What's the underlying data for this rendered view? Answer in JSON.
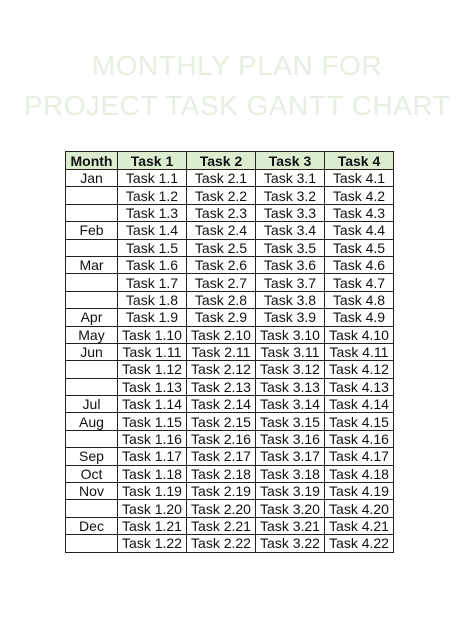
{
  "title": {
    "line1": "MONTHLY PLAN FOR",
    "line2": "PROJECT TASK GANTT CHART"
  },
  "table": {
    "headers": [
      "Month",
      "Task 1",
      "Task 2",
      "Task 3",
      "Task 4"
    ],
    "rows": [
      {
        "month": "Jan",
        "t1": "Task 1.1",
        "t2": "Task 2.1",
        "t3": "Task 3.1",
        "t4": "Task 4.1"
      },
      {
        "month": "",
        "t1": "Task 1.2",
        "t2": "Task 2.2",
        "t3": "Task 3.2",
        "t4": "Task 4.2"
      },
      {
        "month": "",
        "t1": "Task 1.3",
        "t2": "Task 2.3",
        "t3": "Task 3.3",
        "t4": "Task 4.3"
      },
      {
        "month": "Feb",
        "t1": "Task 1.4",
        "t2": "Task 2.4",
        "t3": "Task 3.4",
        "t4": "Task 4.4"
      },
      {
        "month": "",
        "t1": "Task 1.5",
        "t2": "Task 2.5",
        "t3": "Task 3.5",
        "t4": "Task 4.5"
      },
      {
        "month": "Mar",
        "t1": "Task 1.6",
        "t2": "Task 2.6",
        "t3": "Task 3.6",
        "t4": "Task 4.6"
      },
      {
        "month": "",
        "t1": "Task 1.7",
        "t2": "Task 2.7",
        "t3": "Task 3.7",
        "t4": "Task 4.7"
      },
      {
        "month": "",
        "t1": "Task 1.8",
        "t2": "Task 2.8",
        "t3": "Task 3.8",
        "t4": "Task 4.8"
      },
      {
        "month": "Apr",
        "t1": "Task 1.9",
        "t2": "Task 2.9",
        "t3": "Task 3.9",
        "t4": "Task 4.9"
      },
      {
        "month": "May",
        "t1": "Task 1.10",
        "t2": "Task 2.10",
        "t3": "Task 3.10",
        "t4": "Task 4.10"
      },
      {
        "month": "Jun",
        "t1": "Task 1.11",
        "t2": "Task 2.11",
        "t3": "Task 3.11",
        "t4": "Task 4.11"
      },
      {
        "month": "",
        "t1": "Task 1.12",
        "t2": "Task 2.12",
        "t3": "Task 3.12",
        "t4": "Task 4.12"
      },
      {
        "month": "",
        "t1": "Task 1.13",
        "t2": "Task 2.13",
        "t3": "Task 3.13",
        "t4": "Task 4.13"
      },
      {
        "month": "Jul",
        "t1": "Task 1.14",
        "t2": "Task 2.14",
        "t3": "Task 3.14",
        "t4": "Task 4.14"
      },
      {
        "month": "Aug",
        "t1": "Task 1.15",
        "t2": "Task 2.15",
        "t3": "Task 3.15",
        "t4": "Task 4.15"
      },
      {
        "month": "",
        "t1": "Task 1.16",
        "t2": "Task 2.16",
        "t3": "Task 3.16",
        "t4": "Task 4.16"
      },
      {
        "month": "Sep",
        "t1": "Task 1.17",
        "t2": "Task 2.17",
        "t3": "Task 3.17",
        "t4": "Task 4.17"
      },
      {
        "month": "Oct",
        "t1": "Task 1.18",
        "t2": "Task 2.18",
        "t3": "Task 3.18",
        "t4": "Task 4.18"
      },
      {
        "month": "Nov",
        "t1": "Task 1.19",
        "t2": "Task 2.19",
        "t3": "Task 3.19",
        "t4": "Task 4.19"
      },
      {
        "month": "",
        "t1": "Task 1.20",
        "t2": "Task 2.20",
        "t3": "Task 3.20",
        "t4": "Task 4.20"
      },
      {
        "month": "Dec",
        "t1": "Task 1.21",
        "t2": "Task 2.21",
        "t3": "Task 3.21",
        "t4": "Task 4.21"
      },
      {
        "month": "",
        "t1": "Task 1.22",
        "t2": "Task 2.22",
        "t3": "Task 3.22",
        "t4": "Task 4.22"
      }
    ]
  },
  "colors": {
    "header_bg": "#dcedcf",
    "title_color": "#e6efe1",
    "border": "#222222"
  }
}
